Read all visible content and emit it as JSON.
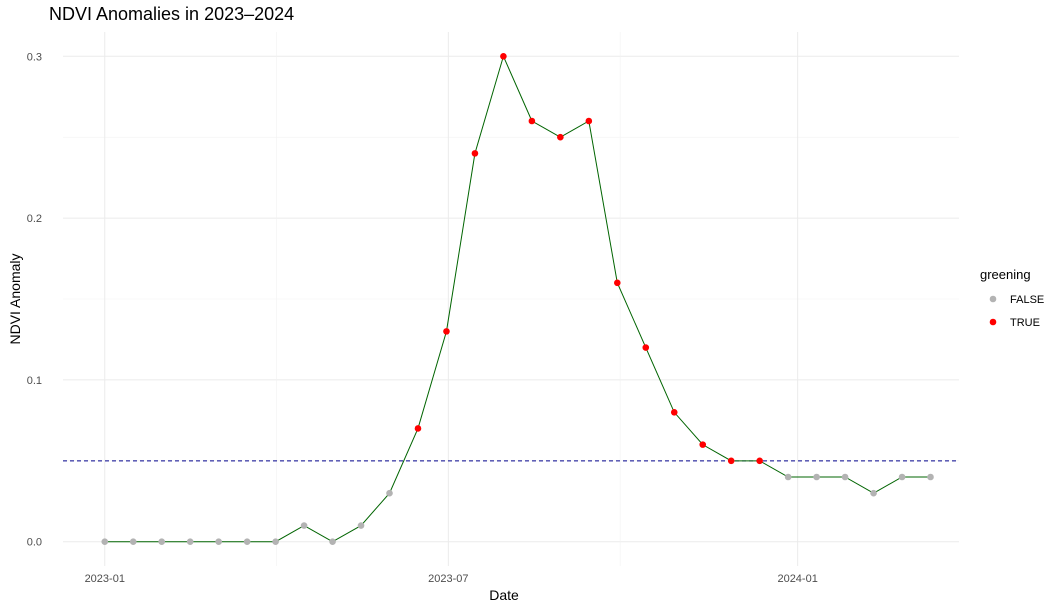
{
  "chart_data": {
    "type": "line",
    "title": "NDVI Anomalies in 2023–2024",
    "xlabel": "Date",
    "ylabel": "NDVI Anomaly",
    "x_ticks": [
      "2023-01",
      "2023-07",
      "2024-01"
    ],
    "y_ticks": [
      "0.0",
      "0.1",
      "0.2",
      "0.3"
    ],
    "ylim": [
      -0.015,
      0.315
    ],
    "xlim": [
      "2022-12-10",
      "2024-03-26"
    ],
    "grid": true,
    "line_color": "#006400",
    "threshold": {
      "value": 0.05,
      "color": "#00008b",
      "style": "dashed"
    },
    "legend": {
      "title": "greening",
      "position": "right",
      "entries": [
        {
          "label": "FALSE",
          "color": "#b3b3b3"
        },
        {
          "label": "TRUE",
          "color": "#ff0000"
        }
      ]
    },
    "points": [
      {
        "date": "2023-01-01",
        "value": 0.0,
        "greening": false
      },
      {
        "date": "2023-01-16",
        "value": 0.0,
        "greening": false
      },
      {
        "date": "2023-01-31",
        "value": 0.0,
        "greening": false
      },
      {
        "date": "2023-02-15",
        "value": 0.0,
        "greening": false
      },
      {
        "date": "2023-03-02",
        "value": 0.0,
        "greening": false
      },
      {
        "date": "2023-03-17",
        "value": 0.0,
        "greening": false
      },
      {
        "date": "2023-04-01",
        "value": 0.0,
        "greening": false
      },
      {
        "date": "2023-04-16",
        "value": 0.01,
        "greening": false
      },
      {
        "date": "2023-05-01",
        "value": 0.0,
        "greening": false
      },
      {
        "date": "2023-05-16",
        "value": 0.01,
        "greening": false
      },
      {
        "date": "2023-05-31",
        "value": 0.03,
        "greening": false
      },
      {
        "date": "2023-06-15",
        "value": 0.07,
        "greening": true
      },
      {
        "date": "2023-06-30",
        "value": 0.13,
        "greening": true
      },
      {
        "date": "2023-07-15",
        "value": 0.24,
        "greening": true
      },
      {
        "date": "2023-07-30",
        "value": 0.3,
        "greening": true
      },
      {
        "date": "2023-08-14",
        "value": 0.26,
        "greening": true
      },
      {
        "date": "2023-08-29",
        "value": 0.25,
        "greening": true
      },
      {
        "date": "2023-09-13",
        "value": 0.26,
        "greening": true
      },
      {
        "date": "2023-09-28",
        "value": 0.16,
        "greening": true
      },
      {
        "date": "2023-10-13",
        "value": 0.12,
        "greening": true
      },
      {
        "date": "2023-10-28",
        "value": 0.08,
        "greening": true
      },
      {
        "date": "2023-11-12",
        "value": 0.06,
        "greening": true
      },
      {
        "date": "2023-11-27",
        "value": 0.05,
        "greening": true
      },
      {
        "date": "2023-12-12",
        "value": 0.05,
        "greening": true
      },
      {
        "date": "2023-12-27",
        "value": 0.04,
        "greening": false
      },
      {
        "date": "2024-01-11",
        "value": 0.04,
        "greening": false
      },
      {
        "date": "2024-01-26",
        "value": 0.04,
        "greening": false
      },
      {
        "date": "2024-02-10",
        "value": 0.03,
        "greening": false
      },
      {
        "date": "2024-02-25",
        "value": 0.04,
        "greening": false
      },
      {
        "date": "2024-03-11",
        "value": 0.04,
        "greening": false
      }
    ]
  }
}
